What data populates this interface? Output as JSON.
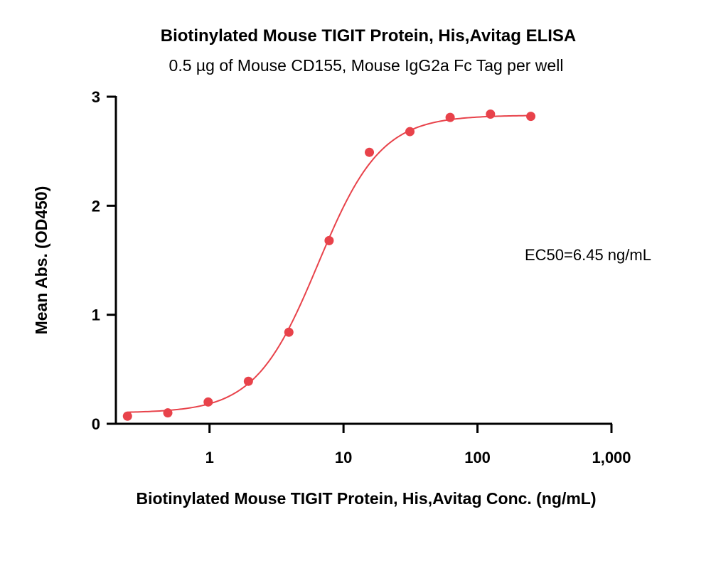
{
  "chart_data": {
    "type": "scatter",
    "title": "Biotinylated Mouse TIGIT Protein, His,Avitag ELISA",
    "subtitle": "0.5 µg of Mouse CD155, Mouse IgG2a Fc Tag per well",
    "xlabel": "Biotinylated Mouse TIGIT Protein, His,Avitag Conc. (ng/mL)",
    "ylabel": "Mean Abs. (OD450)",
    "x_scale": "log",
    "xlim": [
      0.2,
      1000
    ],
    "ylim": [
      0,
      3
    ],
    "x_ticks": [
      1,
      10,
      100,
      1000
    ],
    "x_tick_labels": [
      "1",
      "10",
      "100",
      "1,000"
    ],
    "y_ticks": [
      0,
      1,
      2,
      3
    ],
    "y_tick_labels": [
      "0",
      "1",
      "2",
      "3"
    ],
    "grid": false,
    "annotation": "EC50=6.45 ng/mL",
    "color": "#e8424a",
    "series": [
      {
        "x": [
          0.244,
          0.488,
          0.977,
          1.95,
          3.91,
          7.81,
          15.6,
          31.3,
          62.5,
          125,
          250
        ],
        "y": [
          0.07,
          0.1,
          0.2,
          0.39,
          0.84,
          1.68,
          2.49,
          2.68,
          2.81,
          2.84,
          2.82
        ]
      }
    ],
    "fit": {
      "model": "4PL",
      "bottom": 0.1,
      "top": 2.83,
      "ec50": 6.45,
      "hill": 1.85
    }
  }
}
